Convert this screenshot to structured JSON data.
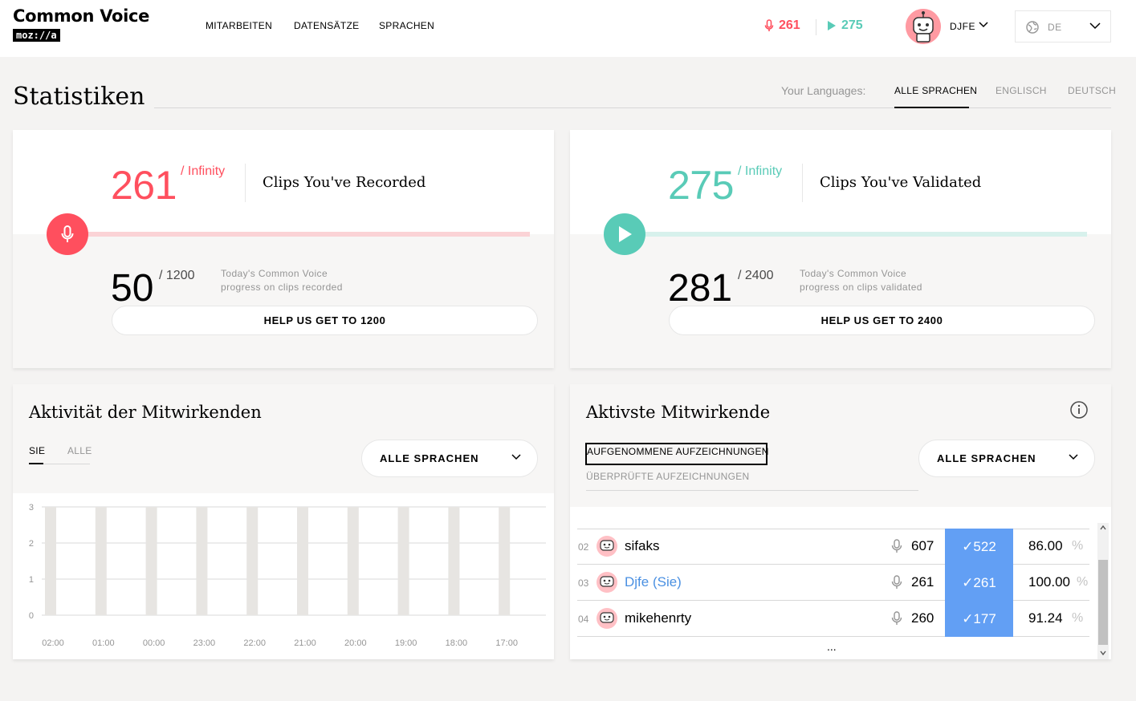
{
  "header": {
    "logo_title": "Common Voice",
    "logo_sub": "moz://a",
    "nav": [
      "MITARBEITEN",
      "DATENSÄTZE",
      "SPRACHEN"
    ],
    "recorded_count": "261",
    "validated_count": "275",
    "username": "DJFE",
    "language": "DE",
    "colors": {
      "record": "#ff4f5e",
      "validate": "#59cbb7"
    }
  },
  "page": {
    "title": "Statistiken",
    "your_languages_label": "Your Languages:",
    "language_tabs": [
      "ALLE SPRACHEN",
      "ENGLISCH",
      "DEUTSCH"
    ],
    "active_language_tab": "ALLE SPRACHEN"
  },
  "recorded_card": {
    "count": "261",
    "of": "/ Infinity",
    "label": "Clips You've Recorded",
    "goal_count": "50",
    "goal_of": "/ 1200",
    "goal_desc_1": "Today's Common Voice",
    "goal_desc_2": "progress on clips recorded",
    "button": "HELP US GET TO 1200",
    "progress_fraction": 1.0
  },
  "validated_card": {
    "count": "275",
    "of": "/ Infinity",
    "label": "Clips You've Validated",
    "goal_count": "281",
    "goal_of": "/ 2400",
    "goal_desc_1": "Today's Common Voice",
    "goal_desc_2": "progress on clips validated",
    "button": "HELP US GET TO 2400",
    "progress_fraction": 1.0
  },
  "activity": {
    "title": "Aktivität der Mitwirkenden",
    "tabs": [
      "SIE",
      "ALLE"
    ],
    "active_tab": "SIE",
    "dropdown": "ALLE SPRACHEN"
  },
  "chart_data": {
    "type": "bar",
    "categories": [
      "02:00",
      "01:00",
      "00:00",
      "23:00",
      "22:00",
      "21:00",
      "20:00",
      "19:00",
      "18:00",
      "17:00"
    ],
    "values": [
      3,
      3,
      3,
      3,
      3,
      3,
      3,
      3,
      3,
      3
    ],
    "y_ticks": [
      "3",
      "2",
      "1",
      "0"
    ],
    "ylim": [
      0,
      3
    ],
    "grid": true,
    "bar_color": "#e7e5e2"
  },
  "leaderboard": {
    "title": "Aktivste Mitwirkende",
    "tabs": [
      "AUFGENOMMENE AUFZEICHNUNGEN",
      "ÜBERPRÜFTE AUFZEICHNUNGEN"
    ],
    "active_tab": "AUFGENOMMENE AUFZEICHNUNGEN",
    "dropdown": "ALLE SPRACHEN",
    "rows": [
      {
        "rank": "02",
        "name": "sifaks",
        "recorded": "607",
        "validated": "✓522",
        "percent": "86.00",
        "pct_sign": "%"
      },
      {
        "rank": "03",
        "name": "Djfe (Sie)",
        "recorded": "261",
        "validated": "✓261",
        "percent": "100.00",
        "pct_sign": "%"
      },
      {
        "rank": "04",
        "name": "mikehenrty",
        "recorded": "260",
        "validated": "✓177",
        "percent": "91.24",
        "pct_sign": "%"
      }
    ],
    "more": "...",
    "self_color": "#4a90e2"
  }
}
